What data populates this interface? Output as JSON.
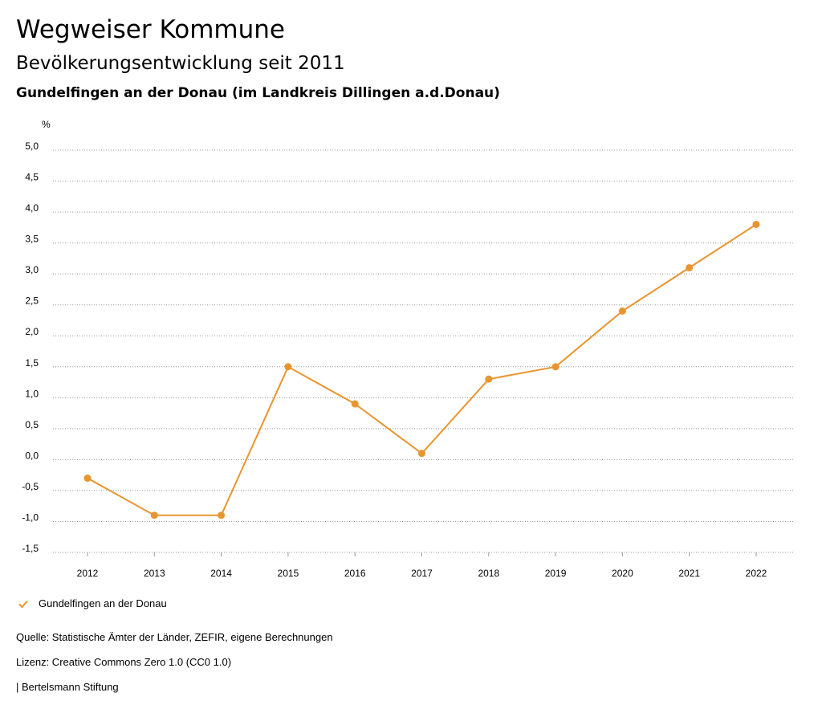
{
  "header": {
    "title": "Wegweiser Kommune",
    "subtitle": "Bevölkerungsentwicklung seit 2011",
    "region": "Gundelfingen an der Donau (im Landkreis Dillingen a.d.Donau)"
  },
  "chart_data": {
    "type": "line",
    "unit_label": "%",
    "x": [
      "2012",
      "2013",
      "2014",
      "2015",
      "2016",
      "2017",
      "2018",
      "2019",
      "2020",
      "2021",
      "2022"
    ],
    "series": [
      {
        "name": "Gundelfingen an der Donau",
        "color": "#e8952f",
        "values": [
          -0.3,
          -0.9,
          -0.9,
          1.5,
          0.9,
          0.1,
          1.3,
          1.5,
          2.4,
          3.1,
          3.8
        ]
      }
    ],
    "yticks": [
      "5,0",
      "4,5",
      "4,0",
      "3,5",
      "3,0",
      "2,5",
      "2,0",
      "1,5",
      "1,0",
      "0,5",
      "0,0",
      "-0,5",
      "-1,0",
      "-1,5"
    ],
    "ylim": [
      -1.5,
      5.0
    ],
    "grid": true,
    "legend_position": "bottom-left"
  },
  "footer": {
    "source": "Quelle: Statistische Ämter der Länder, ZEFIR, eigene Berechnungen",
    "license": "Lizenz: Creative Commons Zero 1.0 (CC0 1.0)",
    "publisher": "| Bertelsmann Stiftung"
  }
}
